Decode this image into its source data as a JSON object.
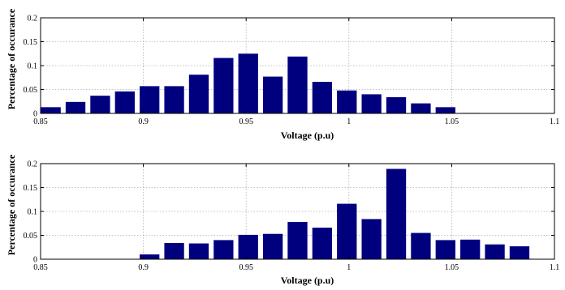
{
  "chart_data": [
    {
      "type": "bar",
      "title": "",
      "xlabel": "Voltage (p.u)",
      "ylabel": "Percentage of occurance",
      "xlim": [
        0.85,
        1.1
      ],
      "ylim": [
        0,
        0.2
      ],
      "xticks": [
        "0.85",
        "0.9",
        "0.95",
        "1",
        "1.05",
        "1.1"
      ],
      "yticks": [
        "0",
        "0.05",
        "0.1",
        "0.15",
        "0.2"
      ],
      "grid": true,
      "bar_color": "#00007f",
      "x": [
        0.855,
        0.867,
        0.879,
        0.891,
        0.903,
        0.915,
        0.927,
        0.939,
        0.951,
        0.963,
        0.975,
        0.987,
        0.999,
        1.011,
        1.023,
        1.035,
        1.047,
        1.059,
        1.071,
        1.083
      ],
      "values": [
        0.013,
        0.024,
        0.037,
        0.046,
        0.057,
        0.057,
        0.081,
        0.116,
        0.125,
        0.077,
        0.119,
        0.066,
        0.048,
        0.04,
        0.034,
        0.021,
        0.013,
        0.001,
        0,
        0
      ]
    },
    {
      "type": "bar",
      "title": "",
      "xlabel": "Voltage (p.u)",
      "ylabel": "Percentage of occurance",
      "xlim": [
        0.85,
        1.1
      ],
      "ylim": [
        0,
        0.2
      ],
      "xticks": [
        "0.85",
        "0.9",
        "0.95",
        "1",
        "1.05",
        "1.1"
      ],
      "yticks": [
        "0",
        "0.05",
        "0.1",
        "0.15",
        "0.2"
      ],
      "grid": true,
      "bar_color": "#00007f",
      "x": [
        0.903,
        0.915,
        0.927,
        0.939,
        0.951,
        0.963,
        0.975,
        0.987,
        0.999,
        1.011,
        1.023,
        1.035,
        1.047,
        1.059,
        1.071,
        1.083
      ],
      "values": [
        0.01,
        0.034,
        0.033,
        0.04,
        0.051,
        0.053,
        0.078,
        0.066,
        0.116,
        0.084,
        0.189,
        0.055,
        0.04,
        0.041,
        0.031,
        0.027
      ]
    }
  ]
}
